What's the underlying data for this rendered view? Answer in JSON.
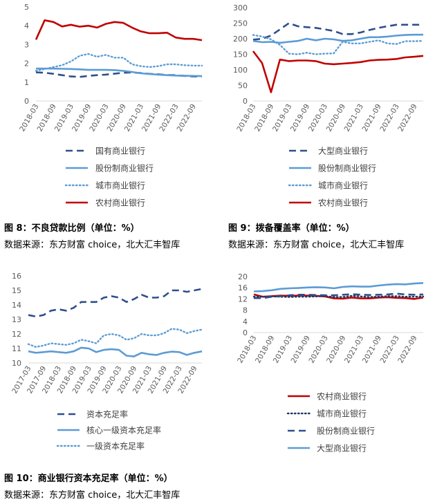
{
  "captions": [
    {
      "title": "图 8：不良贷款比例（单位：%）",
      "source": "数据来源：东方财富 choice，北大汇丰智库"
    },
    {
      "title": "图 9：拨备覆盖率（单位：%）",
      "source": "数据来源：东方财富 choice，北大汇丰智库"
    },
    {
      "title": "图 10：商业银行资本充足率（单位：%）",
      "source": "数据来源：东方财富 choice，北大汇丰智库"
    }
  ],
  "chart_data": [
    {
      "type": "line",
      "ylim": [
        0,
        5
      ],
      "yticks": [
        0,
        1,
        2,
        3,
        4,
        5
      ],
      "xtick_labels": [
        "2018-03",
        "2018-09",
        "2019-03",
        "2019-09",
        "2020-03",
        "2020-09",
        "2021-03",
        "2021-09",
        "2022-03",
        "2022-09"
      ],
      "x": [
        "2018-03",
        "2018-06",
        "2018-09",
        "2018-12",
        "2019-03",
        "2019-06",
        "2019-09",
        "2019-12",
        "2020-03",
        "2020-06",
        "2020-09",
        "2020-12",
        "2021-03",
        "2021-06",
        "2021-09",
        "2021-12",
        "2022-03",
        "2022-06",
        "2022-09",
        "2022-12"
      ],
      "series": [
        {
          "name": "国有商业银行",
          "style": "dash",
          "color": "#2f4e8c",
          "values": [
            1.52,
            1.5,
            1.44,
            1.37,
            1.3,
            1.28,
            1.33,
            1.37,
            1.4,
            1.45,
            1.5,
            1.52,
            1.48,
            1.44,
            1.42,
            1.38,
            1.37,
            1.33,
            1.3,
            1.3
          ]
        },
        {
          "name": "股份制商业银行",
          "style": "solid",
          "color": "#5b9bd5",
          "values": [
            1.72,
            1.72,
            1.72,
            1.71,
            1.7,
            1.68,
            1.65,
            1.65,
            1.65,
            1.64,
            1.6,
            1.54,
            1.47,
            1.43,
            1.4,
            1.37,
            1.35,
            1.34,
            1.33,
            1.32
          ]
        },
        {
          "name": "城市商业银行",
          "style": "dot",
          "color": "#5b9bd5",
          "values": [
            1.6,
            1.7,
            1.8,
            1.9,
            2.1,
            2.4,
            2.5,
            2.35,
            2.45,
            2.3,
            2.3,
            1.95,
            1.85,
            1.8,
            1.85,
            1.95,
            1.95,
            1.9,
            1.88,
            1.88
          ]
        },
        {
          "name": "农村商业银行",
          "style": "solid",
          "color": "#c00000",
          "values": [
            3.26,
            4.29,
            4.2,
            3.96,
            4.05,
            3.95,
            4.0,
            3.9,
            4.1,
            4.2,
            4.15,
            3.9,
            3.7,
            3.6,
            3.6,
            3.63,
            3.37,
            3.3,
            3.3,
            3.23
          ]
        }
      ]
    },
    {
      "type": "line",
      "ylim": [
        0,
        300
      ],
      "yticks": [
        0,
        50,
        100,
        150,
        200,
        250,
        300
      ],
      "xtick_labels": [
        "2018-03",
        "2018-09",
        "2019-03",
        "2019-09",
        "2020-03",
        "2020-09",
        "2021-03",
        "2021-09",
        "2022-03",
        "2022-09"
      ],
      "x": [
        "2018-03",
        "2018-06",
        "2018-09",
        "2018-12",
        "2019-03",
        "2019-06",
        "2019-09",
        "2019-12",
        "2020-03",
        "2020-06",
        "2020-09",
        "2020-12",
        "2021-03",
        "2021-06",
        "2021-09",
        "2021-12",
        "2022-03",
        "2022-06",
        "2022-09",
        "2022-12"
      ],
      "series": [
        {
          "name": "大型商业银行",
          "style": "dash",
          "color": "#2f4e8c",
          "values": [
            197,
            200,
            210,
            230,
            250,
            240,
            237,
            235,
            230,
            225,
            215,
            215,
            220,
            228,
            235,
            240,
            245,
            245,
            245,
            245
          ]
        },
        {
          "name": "股份制商业银行",
          "style": "solid",
          "color": "#5b9bd5",
          "values": [
            193,
            189,
            190,
            187,
            190,
            193,
            200,
            195,
            200,
            198,
            193,
            195,
            200,
            205,
            205,
            207,
            210,
            212,
            213,
            213
          ]
        },
        {
          "name": "城市商业银行",
          "style": "dot",
          "color": "#5b9bd5",
          "values": [
            212,
            207,
            198,
            180,
            152,
            150,
            155,
            150,
            152,
            153,
            190,
            185,
            185,
            190,
            195,
            185,
            183,
            192,
            192,
            193
          ]
        },
        {
          "name": "农村商业银行",
          "style": "solid",
          "color": "#c00000",
          "values": [
            160,
            122,
            28,
            133,
            128,
            130,
            130,
            128,
            120,
            118,
            120,
            122,
            125,
            130,
            132,
            133,
            135,
            140,
            142,
            145
          ]
        }
      ]
    },
    {
      "type": "line",
      "ylim": [
        10,
        16
      ],
      "yticks": [
        10,
        11,
        12,
        13,
        14,
        15,
        16
      ],
      "xtick_labels": [
        "2017-03",
        "2017-09",
        "2018-03",
        "2018-09",
        "2019-03",
        "2019-09",
        "2020-03",
        "2020-09",
        "2021-03",
        "2021-09",
        "2022-03",
        "2022-09"
      ],
      "x": [
        "2017-03",
        "2017-06",
        "2017-09",
        "2017-12",
        "2018-03",
        "2018-06",
        "2018-09",
        "2018-12",
        "2019-03",
        "2019-06",
        "2019-09",
        "2019-12",
        "2020-03",
        "2020-06",
        "2020-09",
        "2020-12",
        "2021-03",
        "2021-06",
        "2021-09",
        "2021-12",
        "2022-03",
        "2022-06",
        "2022-09",
        "2022-12"
      ],
      "series": [
        {
          "name": "资本充足率",
          "style": "dash",
          "color": "#2f4e8c",
          "values": [
            13.3,
            13.2,
            13.3,
            13.6,
            13.7,
            13.6,
            13.8,
            14.2,
            14.2,
            14.2,
            14.5,
            14.6,
            14.5,
            14.2,
            14.4,
            14.7,
            14.5,
            14.5,
            14.6,
            15.0,
            15.0,
            14.9,
            15.0,
            15.1
          ]
        },
        {
          "name": "核心一级资本充足率",
          "style": "solid",
          "color": "#5b9bd5",
          "values": [
            10.8,
            10.7,
            10.75,
            10.8,
            10.75,
            10.7,
            10.8,
            11.05,
            11.0,
            10.75,
            10.9,
            10.95,
            10.9,
            10.5,
            10.45,
            10.7,
            10.6,
            10.55,
            10.7,
            10.78,
            10.75,
            10.55,
            10.7,
            10.8
          ]
        },
        {
          "name": "一级资本充足率",
          "style": "dot",
          "color": "#5b9bd5",
          "values": [
            11.3,
            11.1,
            11.2,
            11.35,
            11.3,
            11.25,
            11.35,
            11.6,
            11.5,
            11.35,
            11.9,
            12.0,
            11.9,
            11.6,
            11.7,
            12.0,
            11.9,
            11.9,
            12.05,
            12.35,
            12.3,
            12.05,
            12.2,
            12.3
          ]
        }
      ]
    },
    {
      "type": "line",
      "ylim": [
        0,
        20
      ],
      "yticks": [
        0,
        2,
        4,
        6,
        8,
        10,
        12,
        14,
        16,
        18,
        20
      ],
      "xtick_labels": [
        "2018-03",
        "2018-09",
        "2019-03",
        "2019-09",
        "2020-03",
        "2020-09",
        "2021-03",
        "2021-09",
        "2022-03",
        "2022-09"
      ],
      "x": [
        "2018-03",
        "2018-06",
        "2018-09",
        "2018-12",
        "2019-03",
        "2019-06",
        "2019-09",
        "2019-12",
        "2020-03",
        "2020-06",
        "2020-09",
        "2020-12",
        "2021-03",
        "2021-06",
        "2021-09",
        "2021-12",
        "2022-03",
        "2022-06",
        "2022-09",
        "2022-12"
      ],
      "series": [
        {
          "name": "农村商业银行",
          "style": "solid",
          "color": "#c00000",
          "values": [
            13.6,
            12.8,
            13.0,
            13.2,
            13.1,
            13.2,
            13.2,
            13.1,
            12.9,
            12.2,
            12.1,
            12.5,
            12.2,
            12.2,
            12.5,
            12.6,
            12.4,
            12.3,
            12.0,
            12.5
          ]
        },
        {
          "name": "城市商业银行",
          "style": "dot",
          "color": "#1f3864",
          "values": [
            12.8,
            12.8,
            12.9,
            12.8,
            12.7,
            12.8,
            12.8,
            12.9,
            13.0,
            12.7,
            12.7,
            13.1,
            12.9,
            12.7,
            12.8,
            13.0,
            13.0,
            12.8,
            12.8,
            12.9
          ]
        },
        {
          "name": "股份制商业银行",
          "style": "dash",
          "color": "#2f4e8c",
          "values": [
            12.3,
            12.3,
            12.8,
            13.0,
            13.3,
            13.5,
            13.5,
            13.4,
            13.3,
            13.3,
            13.5,
            13.7,
            13.5,
            13.4,
            13.5,
            13.6,
            13.9,
            13.6,
            13.5,
            13.6
          ]
        },
        {
          "name": "大型商业银行",
          "style": "solid",
          "color": "#5b9bd5",
          "values": [
            14.7,
            14.8,
            15.1,
            15.6,
            15.8,
            15.9,
            16.1,
            16.2,
            16.1,
            15.8,
            16.3,
            16.5,
            16.4,
            16.4,
            16.8,
            17.1,
            17.3,
            17.2,
            17.5,
            17.7
          ]
        }
      ]
    }
  ]
}
